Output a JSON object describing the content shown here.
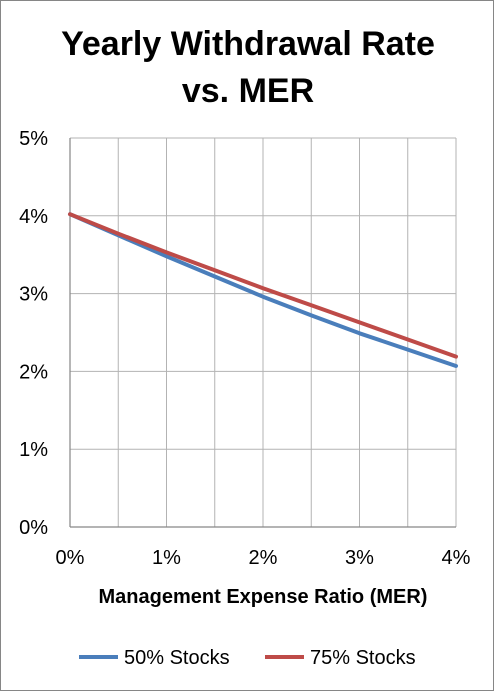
{
  "chart_data": {
    "type": "line",
    "title": [
      "Yearly Withdrawal Rate",
      "vs. MER"
    ],
    "xlabel": "Management Expense Ratio (MER)",
    "ylabel": "",
    "xlim": [
      0,
      4
    ],
    "ylim": [
      0,
      5
    ],
    "x_ticks": [
      "0%",
      "1%",
      "2%",
      "3%",
      "4%"
    ],
    "y_ticks": [
      "0%",
      "1%",
      "2%",
      "3%",
      "4%",
      "5%"
    ],
    "grid": true,
    "legend": "bottom",
    "x": [
      0,
      0.5,
      1,
      1.5,
      2,
      2.5,
      3,
      3.5,
      4
    ],
    "series": [
      {
        "name": "50% Stocks",
        "color": "#4a7ebb",
        "values": [
          4.02,
          3.75,
          3.48,
          3.22,
          2.96,
          2.72,
          2.49,
          2.28,
          2.07
        ]
      },
      {
        "name": "75% Stocks",
        "color": "#be4b48",
        "values": [
          4.02,
          3.77,
          3.53,
          3.3,
          3.07,
          2.85,
          2.63,
          2.41,
          2.19
        ]
      }
    ]
  }
}
